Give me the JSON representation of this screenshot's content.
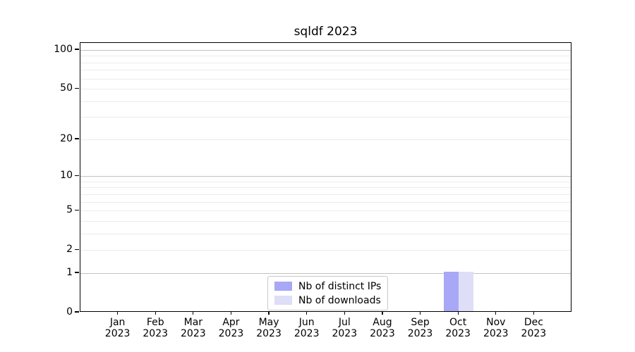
{
  "figure": {
    "title": "sqldf 2023"
  },
  "chart_data": {
    "type": "bar",
    "title": "sqldf 2023",
    "x": {
      "categories": [
        "Jan",
        "Feb",
        "Mar",
        "Apr",
        "May",
        "Jun",
        "Jul",
        "Aug",
        "Sep",
        "Oct",
        "Nov",
        "Dec"
      ],
      "year_label": "2023"
    },
    "series": [
      {
        "name": "Nb of distinct IPs",
        "color": "#a8a8f6",
        "values": [
          0,
          0,
          0,
          0,
          0,
          0,
          0,
          0,
          0,
          1,
          0,
          0
        ]
      },
      {
        "name": "Nb of downloads",
        "color": "#dedef8",
        "values": [
          0,
          0,
          0,
          0,
          0,
          0,
          0,
          0,
          0,
          1,
          0,
          0
        ]
      }
    ],
    "y_axis": {
      "scale": "log1p",
      "ticks": [
        0,
        1,
        2,
        5,
        10,
        20,
        50,
        100
      ],
      "minor_gridlines": [
        3,
        4,
        6,
        7,
        8,
        9,
        30,
        40,
        60,
        70,
        80,
        90
      ],
      "strong_gridlines": [
        1,
        10,
        100
      ],
      "ylim": [
        0,
        113
      ]
    },
    "legend": {
      "position": "bottom-center",
      "entries": [
        "Nb of distinct IPs",
        "Nb of downloads"
      ]
    },
    "grid": true
  }
}
